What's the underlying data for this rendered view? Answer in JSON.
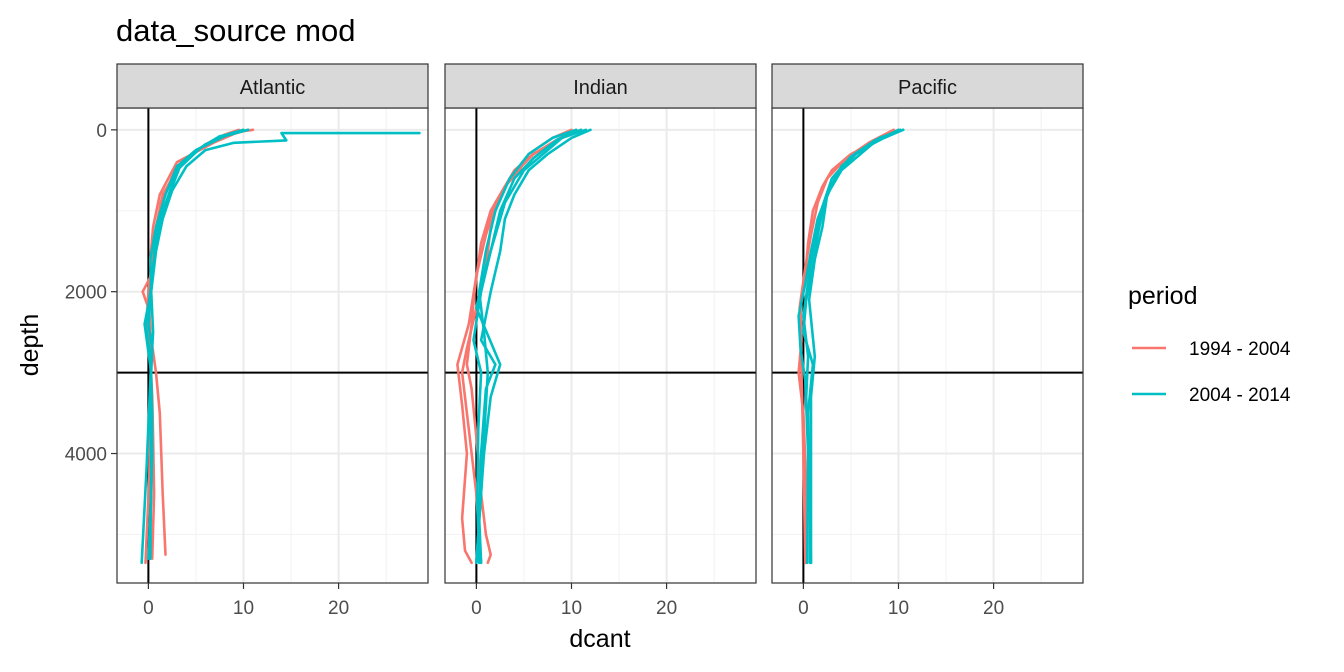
{
  "chart_data": {
    "type": "line",
    "title": "data_source mod",
    "xlabel": "dcant",
    "ylabel": "depth",
    "xlim": [
      -3.3,
      29.4
    ],
    "ylim": [
      5600,
      -270
    ],
    "y_reversed": true,
    "xticks": [
      0,
      10,
      20
    ],
    "yticks": [
      0,
      2000,
      4000
    ],
    "grid": true,
    "reference_lines": {
      "vertical_x": 0,
      "horizontal_y": 3000
    },
    "legend": {
      "title": "period",
      "position": "right",
      "entries": [
        {
          "label": "1994 - 2004",
          "color": "#F8766D"
        },
        {
          "label": "2004 - 2014",
          "color": "#00BFC4"
        }
      ]
    },
    "facets": [
      {
        "label": "Atlantic",
        "series": [
          {
            "period": "1994 - 2004",
            "x": [
              10.5,
              9.0,
              7.0,
              3.0,
              1.2,
              0.5,
              0.2,
              0.3,
              -0.6,
              0.0,
              0.2,
              0.8,
              1.2,
              1.5,
              1.8
            ],
            "y": [
              0,
              50,
              150,
              400,
              800,
              1200,
              1600,
              1800,
              2000,
              2200,
              2500,
              3000,
              3500,
              4500,
              5250
            ]
          },
          {
            "period": "1994 - 2004",
            "x": [
              11.0,
              8.5,
              6.5,
              3.5,
              1.5,
              0.8,
              0.4,
              0.0,
              -0.2,
              0.2,
              0.4,
              0.5,
              0.6,
              0.4
            ],
            "y": [
              0,
              40,
              150,
              400,
              800,
              1200,
              1600,
              2000,
              2400,
              2800,
              3300,
              3800,
              4500,
              5300
            ]
          },
          {
            "period": "1994 - 2004",
            "x": [
              9.5,
              8.0,
              6.0,
              3.0,
              1.3,
              0.8,
              0.3,
              0.1,
              0.3,
              0.2,
              0.1,
              -0.3
            ],
            "y": [
              0,
              60,
              180,
              450,
              900,
              1300,
              1700,
              2200,
              2800,
              3400,
              4300,
              5350
            ]
          },
          {
            "period": "2004 - 2014",
            "x": [
              10.0,
              8.5,
              6.0,
              3.0,
              1.8,
              0.8,
              0.2,
              0.3,
              -0.3,
              0.2,
              0.4,
              0.3,
              0.0
            ],
            "y": [
              0,
              50,
              180,
              450,
              800,
              1200,
              1600,
              2000,
              2400,
              2800,
              3500,
              4500,
              5300
            ]
          },
          {
            "period": "2004 - 2014",
            "x": [
              28.5,
              14.0,
              14.5,
              9.0,
              6.0,
              4.0,
              2.5,
              1.5,
              0.8,
              0.3,
              0.5,
              0.2,
              -0.2,
              -0.7
            ],
            "y": [
              40,
              40,
              130,
              160,
              250,
              450,
              750,
              1100,
              1500,
              2000,
              2500,
              3100,
              4200,
              5350
            ]
          },
          {
            "period": "2004 - 2014",
            "x": [
              9.8,
              7.5,
              5.5,
              3.0,
              2.0,
              1.0,
              0.5,
              0.0,
              0.4,
              0.2,
              0.3,
              0.2
            ],
            "y": [
              20,
              80,
              220,
              500,
              850,
              1250,
              1700,
              2400,
              2700,
              3300,
              4200,
              5300
            ]
          },
          {
            "period": "2004 - 2014",
            "x": [
              10.5,
              8.0,
              5.0,
              3.5,
              2.5,
              1.5,
              0.8,
              0.5,
              0.1,
              -0.4,
              0.3,
              0.4,
              0.1
            ],
            "y": [
              0,
              80,
              250,
              400,
              700,
              1000,
              1300,
              1700,
              2100,
              2400,
              3000,
              4000,
              5300
            ]
          }
        ]
      },
      {
        "label": "Indian",
        "series": [
          {
            "period": "1994 - 2004",
            "x": [
              10.0,
              8.0,
              5.5,
              4.5,
              3.0,
              1.5,
              0.5,
              -0.2,
              -0.5,
              -1.0,
              -0.5,
              0.0,
              0.5,
              1.0,
              1.5,
              1.2
            ],
            "y": [
              0,
              100,
              300,
              500,
              700,
              1000,
              1400,
              2000,
              2400,
              2900,
              3200,
              3800,
              4500,
              5000,
              5250,
              5350
            ]
          },
          {
            "period": "1994 - 2004",
            "x": [
              11.0,
              9.0,
              6.0,
              3.5,
              2.0,
              1.0,
              0.0,
              -0.8,
              -2.0,
              -1.5,
              -1.0,
              -1.5,
              -1.2,
              -0.5
            ],
            "y": [
              0,
              100,
              300,
              600,
              900,
              1300,
              1800,
              2400,
              2900,
              3400,
              4000,
              4800,
              5200,
              5350
            ]
          },
          {
            "period": "1994 - 2004",
            "x": [
              10.5,
              8.5,
              6.0,
              4.0,
              2.5,
              1.5,
              1.0,
              0.0,
              -1.0,
              -1.5,
              -1.0,
              0.0,
              0.5
            ],
            "y": [
              0,
              120,
              300,
              500,
              800,
              1200,
              1700,
              2200,
              2700,
              3000,
              3500,
              4500,
              5350
            ]
          },
          {
            "period": "2004 - 2014",
            "x": [
              12.0,
              10.0,
              7.5,
              5.5,
              4.0,
              3.0,
              2.5,
              1.5,
              0.5,
              2.0,
              1.0,
              0.5,
              0.3,
              0.5
            ],
            "y": [
              0,
              100,
              300,
              500,
              800,
              1100,
              1500,
              2000,
              2600,
              2900,
              3200,
              4000,
              4800,
              5350
            ]
          },
          {
            "period": "2004 - 2014",
            "x": [
              11.5,
              9.0,
              7.0,
              5.0,
              3.0,
              2.0,
              1.0,
              0.0,
              2.5,
              1.5,
              0.8,
              0.3,
              0.0
            ],
            "y": [
              0,
              100,
              300,
              500,
              900,
              1300,
              1700,
              2200,
              2900,
              3300,
              4000,
              4800,
              5350
            ]
          },
          {
            "period": "2004 - 2014",
            "x": [
              11.0,
              8.5,
              6.0,
              4.0,
              2.5,
              1.5,
              0.5,
              -0.3,
              0.5,
              0.2,
              0.1,
              0.3
            ],
            "y": [
              0,
              120,
              350,
              600,
              1000,
              1500,
              2000,
              2600,
              3000,
              3700,
              4600,
              5350
            ]
          },
          {
            "period": "2004 - 2014",
            "x": [
              10.5,
              8.0,
              5.5,
              3.5,
              2.0,
              1.0,
              0.3,
              0.8,
              1.2,
              0.8,
              0.5,
              0.0
            ],
            "y": [
              0,
              100,
              300,
              600,
              1000,
              1500,
              2000,
              2500,
              3000,
              3800,
              4500,
              5350
            ]
          }
        ]
      },
      {
        "label": "Pacific",
        "series": [
          {
            "period": "1994 - 2004",
            "x": [
              10.0,
              7.5,
              5.0,
              3.0,
              2.0,
              1.0,
              0.5,
              0.2,
              -0.3,
              -0.2,
              -0.5,
              0.0,
              0.3,
              0.3
            ],
            "y": [
              0,
              150,
              300,
              500,
              700,
              1000,
              1400,
              1800,
              2200,
              2600,
              3000,
              3500,
              4400,
              5350
            ]
          },
          {
            "period": "1994 - 2004",
            "x": [
              9.5,
              7.0,
              4.5,
              2.5,
              1.5,
              0.8,
              0.2,
              -0.4,
              -0.2,
              0.0,
              0.2
            ],
            "y": [
              0,
              150,
              350,
              600,
              900,
              1300,
              1700,
              2200,
              3000,
              4000,
              5350
            ]
          },
          {
            "period": "2004 - 2014",
            "x": [
              10.5,
              8.0,
              6.0,
              4.0,
              2.5,
              1.5,
              0.8,
              0.2,
              -0.5,
              -0.3,
              0.2,
              0.5,
              0.4
            ],
            "y": [
              0,
              100,
              300,
              500,
              800,
              1100,
              1500,
              1900,
              2300,
              2700,
              3100,
              4000,
              5350
            ]
          },
          {
            "period": "2004 - 2014",
            "x": [
              10.5,
              8.5,
              6.0,
              4.0,
              2.5,
              2.0,
              1.2,
              0.6,
              1.2,
              0.8,
              0.8,
              0.8
            ],
            "y": [
              0,
              100,
              250,
              450,
              800,
              1200,
              1600,
              2100,
              2800,
              3300,
              4300,
              5350
            ]
          },
          {
            "period": "2004 - 2014",
            "x": [
              10.0,
              8.0,
              5.5,
              3.5,
              2.2,
              1.5,
              1.0,
              0.3,
              0.0,
              1.0,
              0.5,
              0.7,
              0.7
            ],
            "y": [
              0,
              120,
              300,
              550,
              900,
              1300,
              1700,
              2100,
              2500,
              2900,
              3500,
              4500,
              5350
            ]
          },
          {
            "period": "2004 - 2014",
            "x": [
              10.2,
              7.5,
              5.0,
              3.0,
              2.0,
              1.2,
              0.6,
              0.0,
              0.5,
              0.3,
              0.6,
              0.8
            ],
            "y": [
              0,
              130,
              330,
              600,
              950,
              1350,
              1800,
              2300,
              2800,
              3300,
              4200,
              5350
            ]
          }
        ]
      }
    ]
  }
}
